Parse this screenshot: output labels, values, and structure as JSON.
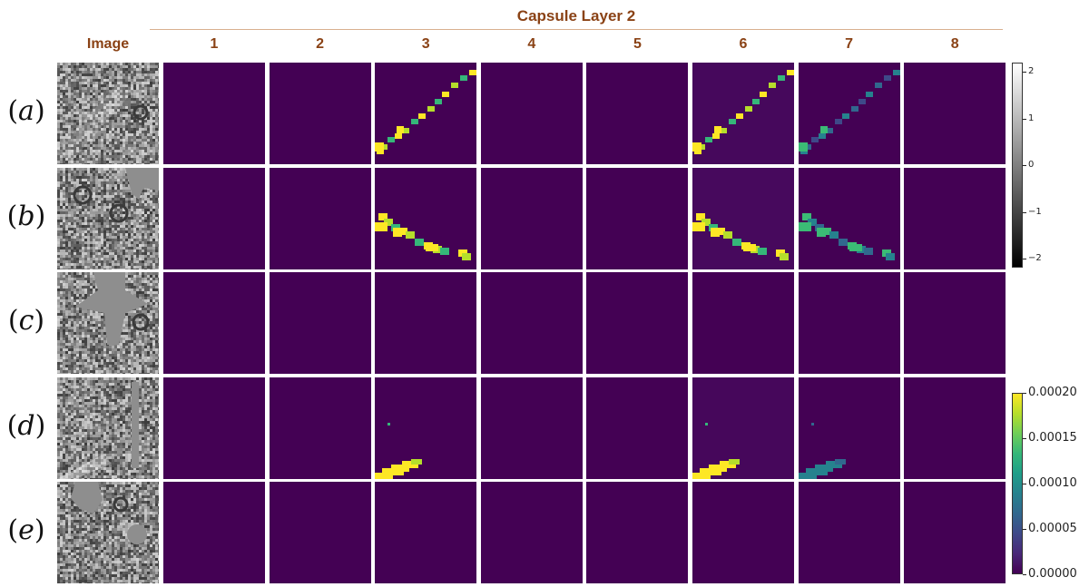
{
  "title": "Capsule Layer 2",
  "columns": {
    "image": "Image",
    "capsules": [
      "1",
      "2",
      "3",
      "4",
      "5",
      "6",
      "7",
      "8"
    ]
  },
  "rows": [
    {
      "label": "a",
      "active_capsules": [
        3,
        6,
        7
      ],
      "pattern": "diagonal-streak"
    },
    {
      "label": "b",
      "active_capsules": [
        3,
        6,
        7
      ],
      "pattern": "bottom-blob"
    },
    {
      "label": "c",
      "active_capsules": [],
      "pattern": "none"
    },
    {
      "label": "d",
      "active_capsules": [
        3,
        6,
        7
      ],
      "pattern": "bottom-left-streak"
    },
    {
      "label": "e",
      "active_capsules": [],
      "pattern": "none"
    }
  ],
  "colorbars": {
    "grayscale": {
      "colormap": "gray",
      "min": -2.8,
      "max": 2.8,
      "ticks": [
        "2",
        "1",
        "0",
        "−1",
        "−2"
      ]
    },
    "viridis": {
      "colormap": "viridis",
      "min": 0,
      "max": 0.0002,
      "ticks": [
        "0.00020",
        "0.00015",
        "0.00010",
        "0.00005",
        "0.00000"
      ]
    }
  },
  "colors": {
    "header_text": "#8a4215",
    "background": "#440154"
  }
}
